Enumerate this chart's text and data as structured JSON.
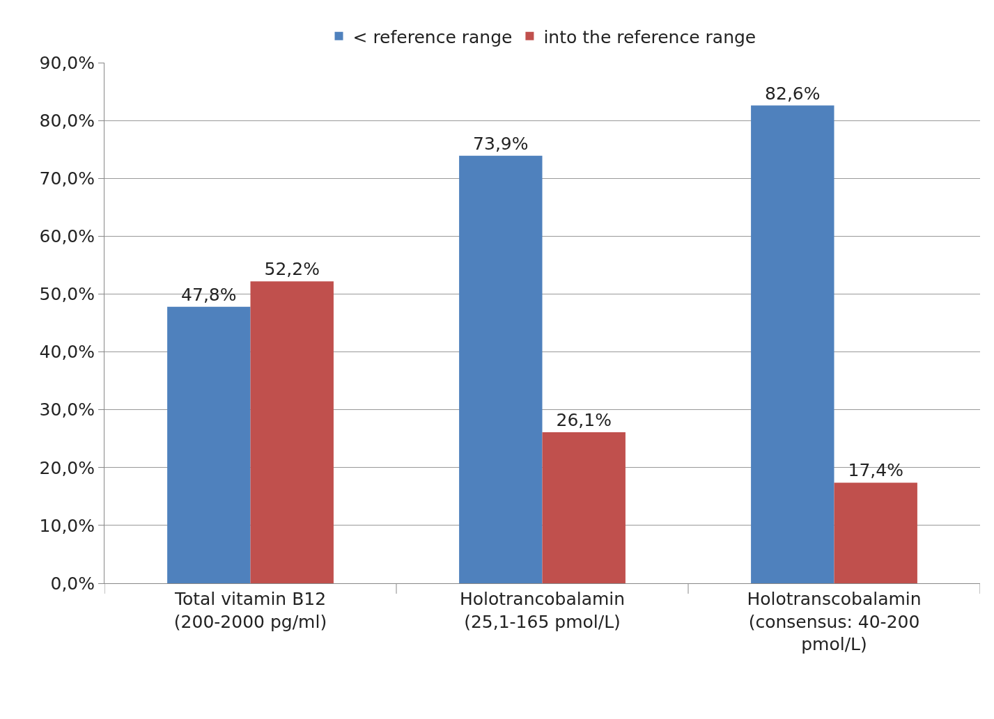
{
  "chart_data": {
    "type": "bar",
    "categories": [
      "Total vitamin B12 (200-2000 pg/ml)",
      "Holotrancobalamin (25,1-165 pmol/L)",
      "Holotranscobalamin (consensus: 40-200 pmol/L)"
    ],
    "series": [
      {
        "name": "< reference range",
        "color": "#4f81bd",
        "values": [
          47.8,
          73.9,
          82.6
        ],
        "value_labels": [
          "47,8%",
          "73,9%",
          "82,6%"
        ]
      },
      {
        "name": "into the reference range",
        "color": "#c0504d",
        "values": [
          52.2,
          26.1,
          17.4
        ],
        "value_labels": [
          "52,2%",
          "26,1%",
          "17,4%"
        ]
      }
    ],
    "ylim": [
      0,
      90
    ],
    "yticks": [
      {
        "value": 0,
        "label": "0,0%"
      },
      {
        "value": 10,
        "label": "10,0%"
      },
      {
        "value": 20,
        "label": "20,0%"
      },
      {
        "value": 30,
        "label": "30,0%"
      },
      {
        "value": 40,
        "label": "40,0%"
      },
      {
        "value": 50,
        "label": "50,0%"
      },
      {
        "value": 60,
        "label": "60,0%"
      },
      {
        "value": 70,
        "label": "70,0%"
      },
      {
        "value": 80,
        "label": "80,0%"
      },
      {
        "value": 90,
        "label": "90,0%"
      }
    ],
    "grid": "y",
    "legend": "top"
  }
}
